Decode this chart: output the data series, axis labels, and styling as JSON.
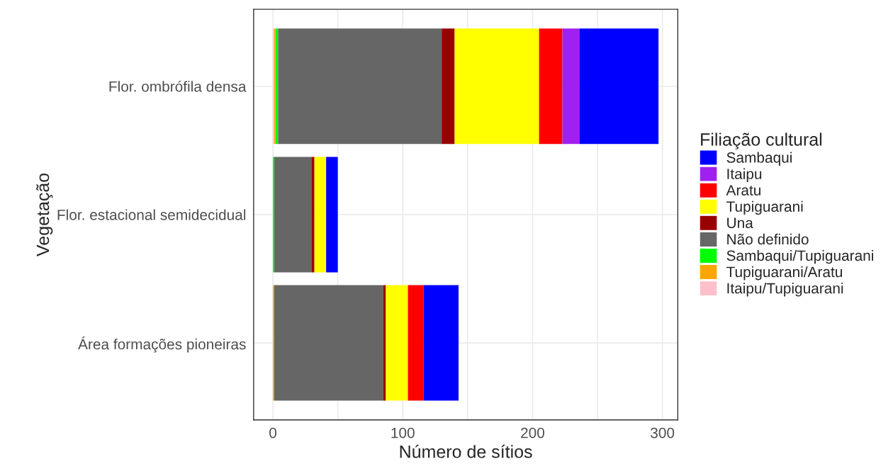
{
  "chart_data": {
    "type": "bar",
    "orientation": "horizontal",
    "stacked": true,
    "xlabel": "Número de sítios",
    "ylabel": "Vegetação",
    "legend_title": "Filiação cultural",
    "categories": [
      "Flor. ombrófila densa",
      "Flor. estacional semidecidual",
      "Área formações pioneiras"
    ],
    "series": [
      {
        "name": "Itaipu/Tupiguarani",
        "color": "#ffc0cb",
        "values": [
          1,
          0,
          0
        ]
      },
      {
        "name": "Tupiguarani/Aratu",
        "color": "#ffa500",
        "values": [
          1,
          0,
          1
        ]
      },
      {
        "name": "Sambaqui/Tupiguarani",
        "color": "#00ff00",
        "values": [
          2,
          1,
          0
        ]
      },
      {
        "name": "Não definido",
        "color": "#666666",
        "values": [
          126,
          29,
          84
        ]
      },
      {
        "name": "Una",
        "color": "#990000",
        "values": [
          10,
          2,
          2
        ]
      },
      {
        "name": "Tupiguarani",
        "color": "#ffff00",
        "values": [
          65,
          9,
          17
        ]
      },
      {
        "name": "Aratu",
        "color": "#ff0000",
        "values": [
          18,
          0,
          12
        ]
      },
      {
        "name": "Itaipu",
        "color": "#a020f0",
        "values": [
          13,
          0,
          0
        ]
      },
      {
        "name": "Sambaqui",
        "color": "#0000ff",
        "values": [
          61,
          9,
          27
        ]
      }
    ],
    "xlim": [
      -14.85,
      311.85
    ],
    "xticks": [
      0,
      {
        "value": 50,
        "label": null
      },
      100,
      {
        "value": 150,
        "label": null
      },
      200,
      {
        "value": 250,
        "label": null
      },
      300
    ],
    "grid": true,
    "legend": "right"
  }
}
